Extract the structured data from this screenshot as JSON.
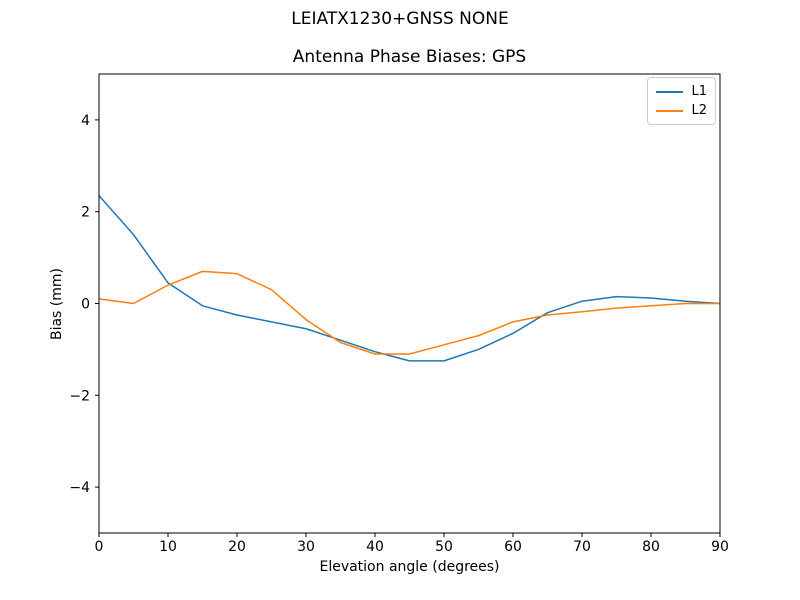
{
  "figure": {
    "suptitle": "LEIATX1230+GNSS NONE"
  },
  "chart_data": {
    "type": "line",
    "title": "Antenna Phase Biases: GPS",
    "xlabel": "Elevation angle (degrees)",
    "ylabel": "Bias (mm)",
    "xlim": [
      0,
      90
    ],
    "ylim": [
      -5,
      5
    ],
    "xticks": [
      0,
      10,
      20,
      30,
      40,
      50,
      60,
      70,
      80,
      90
    ],
    "yticks": [
      -4,
      -2,
      0,
      2,
      4
    ],
    "grid": false,
    "legend_position": "upper right",
    "x": [
      0,
      5,
      10,
      15,
      20,
      25,
      30,
      35,
      40,
      45,
      50,
      55,
      60,
      65,
      70,
      75,
      80,
      85,
      90
    ],
    "series": [
      {
        "name": "L1",
        "color": "#1f77b4",
        "values": [
          2.35,
          1.5,
          0.45,
          -0.05,
          -0.25,
          -0.4,
          -0.55,
          -0.8,
          -1.05,
          -1.25,
          -1.25,
          -1.0,
          -0.65,
          -0.2,
          0.05,
          0.15,
          0.12,
          0.05,
          0.0
        ]
      },
      {
        "name": "L2",
        "color": "#ff7f0e",
        "values": [
          0.1,
          0.0,
          0.4,
          0.7,
          0.65,
          0.3,
          -0.35,
          -0.85,
          -1.1,
          -1.1,
          -0.9,
          -0.7,
          -0.4,
          -0.25,
          -0.18,
          -0.1,
          -0.05,
          0.0,
          0.0
        ]
      }
    ]
  }
}
